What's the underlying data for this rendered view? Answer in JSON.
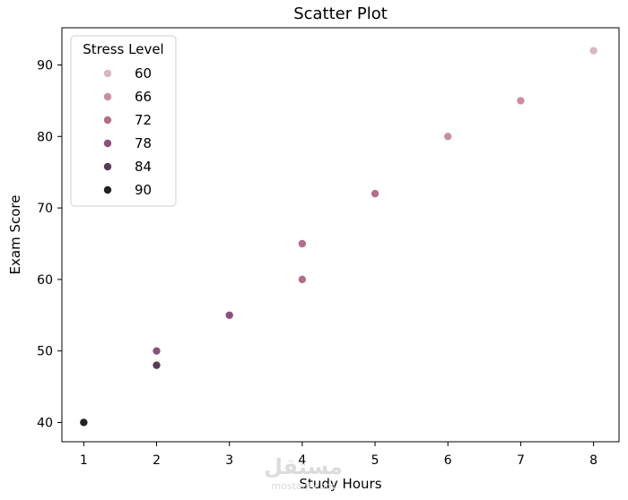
{
  "chart_data": {
    "type": "scatter",
    "title": "Scatter Plot",
    "xlabel": "Study Hours",
    "ylabel": "Exam Score",
    "xlim": [
      0.7,
      8.35
    ],
    "ylim": [
      37.3,
      95.2
    ],
    "xticks": [
      1,
      2,
      3,
      4,
      5,
      6,
      7,
      8
    ],
    "yticks": [
      40,
      50,
      60,
      70,
      80,
      90
    ],
    "grid": false,
    "legend": {
      "title": "Stress Level",
      "placement": "top-left",
      "entries": [
        {
          "label": "60",
          "color": "#d7b7c1"
        },
        {
          "label": "66",
          "color": "#c98f9d"
        },
        {
          "label": "72",
          "color": "#b46d8c"
        },
        {
          "label": "78",
          "color": "#8d4f7f"
        },
        {
          "label": "84",
          "color": "#5a3a58"
        },
        {
          "label": "90",
          "color": "#222222"
        }
      ]
    },
    "points": [
      {
        "x": 1,
        "y": 40,
        "stress": 90,
        "color": "#222222"
      },
      {
        "x": 2,
        "y": 48,
        "stress": 84,
        "color": "#5a3a58"
      },
      {
        "x": 2,
        "y": 50,
        "stress": 78,
        "color": "#8d4f7f"
      },
      {
        "x": 3,
        "y": 55,
        "stress": 78,
        "color": "#8d4f7f"
      },
      {
        "x": 4,
        "y": 60,
        "stress": 72,
        "color": "#b46d8c"
      },
      {
        "x": 4,
        "y": 65,
        "stress": 72,
        "color": "#b46d8c"
      },
      {
        "x": 5,
        "y": 72,
        "stress": 72,
        "color": "#b46d8c"
      },
      {
        "x": 6,
        "y": 80,
        "stress": 66,
        "color": "#c98f9d"
      },
      {
        "x": 7,
        "y": 85,
        "stress": 66,
        "color": "#c98f9d"
      },
      {
        "x": 8,
        "y": 92,
        "stress": 60,
        "color": "#d7b7c1"
      }
    ]
  },
  "watermark": {
    "text_main": "مستقل",
    "text_sub": "mostaql.com"
  }
}
